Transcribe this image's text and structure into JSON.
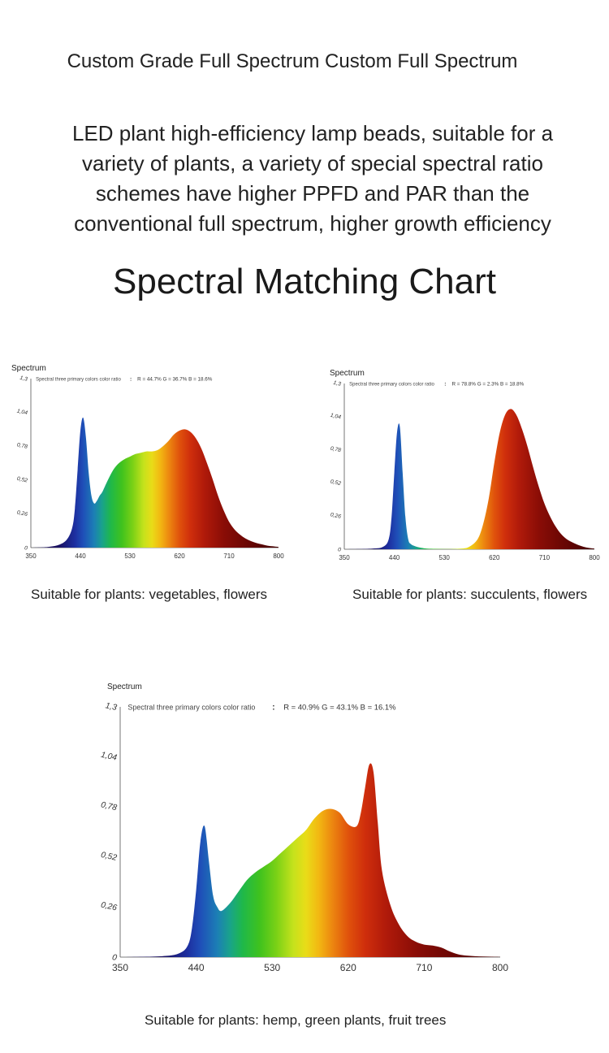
{
  "header": {
    "title": "Custom Grade Full Spectrum Custom Full Spectrum",
    "description": "LED plant high-efficiency lamp beads, suitable for a variety of plants, a variety of special spectral ratio schemes have higher PPFD and PAR than the conventional full spectrum, higher growth efficiency",
    "section_title": "Spectral Matching Chart"
  },
  "chart_data": [
    {
      "type": "area",
      "title": "Spectrum",
      "ratio_label": "Spectral three primary colors color ratio",
      "ratio_sep": ":",
      "ratio_text": "R = 44.7% G = 36.7% B = 18.6%",
      "xlim": [
        350,
        800
      ],
      "ylim": [
        0,
        1.3
      ],
      "x_ticks": [
        "350",
        "440",
        "530",
        "620",
        "710",
        "800"
      ],
      "y_ticks": [
        "0",
        "0,26",
        "0,52",
        "0,78",
        "1,04",
        "1,3"
      ],
      "x": [
        350,
        380,
        400,
        415,
        425,
        430,
        435,
        440,
        445,
        450,
        455,
        460,
        465,
        470,
        475,
        480,
        490,
        500,
        510,
        520,
        530,
        540,
        550,
        560,
        570,
        580,
        590,
        600,
        610,
        620,
        630,
        640,
        650,
        660,
        670,
        680,
        690,
        700,
        710,
        720,
        730,
        740,
        750,
        760,
        770,
        780,
        790,
        800
      ],
      "y": [
        0,
        0.005,
        0.02,
        0.06,
        0.15,
        0.3,
        0.6,
        0.9,
        1.0,
        0.85,
        0.58,
        0.4,
        0.34,
        0.36,
        0.4,
        0.43,
        0.52,
        0.6,
        0.65,
        0.68,
        0.7,
        0.72,
        0.73,
        0.74,
        0.74,
        0.75,
        0.78,
        0.82,
        0.87,
        0.9,
        0.91,
        0.89,
        0.84,
        0.76,
        0.65,
        0.53,
        0.4,
        0.29,
        0.2,
        0.14,
        0.1,
        0.07,
        0.05,
        0.035,
        0.025,
        0.015,
        0.01,
        0.005
      ],
      "caption": "Suitable for plants: vegetables, flowers"
    },
    {
      "type": "area",
      "title": "Spectrum",
      "ratio_label": "Spectral three primary colors color ratio",
      "ratio_sep": ":",
      "ratio_text": "R = 78.8% G = 2.3% B = 18.8%",
      "xlim": [
        350,
        800
      ],
      "ylim": [
        0,
        1.3
      ],
      "x_ticks": [
        "350",
        "440",
        "530",
        "620",
        "710",
        "800"
      ],
      "y_ticks": [
        "0",
        "0,26",
        "0,52",
        "0,78",
        "1,04",
        "1,3"
      ],
      "x": [
        350,
        400,
        420,
        430,
        435,
        440,
        445,
        450,
        455,
        460,
        465,
        470,
        480,
        490,
        500,
        530,
        560,
        575,
        590,
        600,
        610,
        620,
        630,
        640,
        650,
        660,
        670,
        680,
        690,
        700,
        710,
        720,
        730,
        740,
        750,
        760,
        770,
        780,
        790,
        800
      ],
      "y": [
        0,
        0.005,
        0.02,
        0.08,
        0.25,
        0.6,
        0.92,
        0.96,
        0.6,
        0.25,
        0.08,
        0.04,
        0.02,
        0.01,
        0.005,
        0.002,
        0.005,
        0.02,
        0.08,
        0.2,
        0.4,
        0.68,
        0.92,
        1.06,
        1.1,
        1.05,
        0.94,
        0.8,
        0.64,
        0.49,
        0.36,
        0.26,
        0.18,
        0.12,
        0.08,
        0.055,
        0.035,
        0.02,
        0.01,
        0.005
      ],
      "caption": "Suitable for plants: succulents, flowers"
    },
    {
      "type": "area",
      "title": "Spectrum",
      "ratio_label": "Spectral three primary colors color ratio",
      "ratio_sep": ":",
      "ratio_text": "R = 40.9% G = 43.1% B = 16.1%",
      "xlim": [
        350,
        800
      ],
      "ylim": [
        0,
        1.3
      ],
      "x_ticks": [
        "350",
        "440",
        "530",
        "620",
        "710",
        "800"
      ],
      "y_ticks": [
        "0",
        "0,26",
        "0,52",
        "0,78",
        "1,04",
        "1,3"
      ],
      "x": [
        350,
        400,
        420,
        430,
        435,
        440,
        445,
        450,
        455,
        460,
        465,
        470,
        480,
        490,
        500,
        510,
        520,
        530,
        540,
        550,
        560,
        570,
        580,
        590,
        600,
        610,
        620,
        630,
        635,
        640,
        645,
        650,
        655,
        660,
        670,
        680,
        690,
        700,
        710,
        720,
        730,
        740,
        750,
        760,
        770,
        780,
        790,
        800
      ],
      "y": [
        0,
        0.005,
        0.02,
        0.06,
        0.15,
        0.35,
        0.6,
        0.68,
        0.5,
        0.32,
        0.26,
        0.24,
        0.28,
        0.34,
        0.4,
        0.44,
        0.47,
        0.5,
        0.54,
        0.58,
        0.62,
        0.66,
        0.72,
        0.76,
        0.77,
        0.75,
        0.69,
        0.68,
        0.75,
        0.88,
        1.0,
        0.96,
        0.7,
        0.45,
        0.27,
        0.17,
        0.11,
        0.08,
        0.065,
        0.06,
        0.05,
        0.03,
        0.015,
        0.008,
        0.005,
        0.003,
        0.002,
        0.001
      ],
      "caption": "Suitable for plants: hemp, green plants, fruit trees"
    }
  ]
}
